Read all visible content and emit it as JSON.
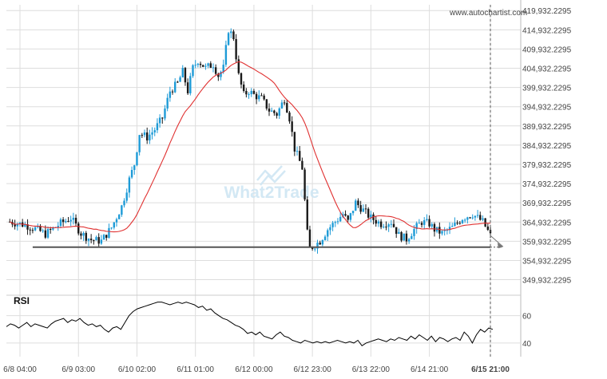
{
  "source_text": "www.autochartist.com",
  "watermark": {
    "part1": "What",
    "digit": "2",
    "part2": "Trade"
  },
  "colors": {
    "bull": "#1e9bd7",
    "bear": "#1a1a1a",
    "ma": "#e03030",
    "grid": "#dddddd",
    "support": "#555555",
    "projection": "#777777",
    "rsi": "#000000",
    "watermark": "#cfe6f3"
  },
  "chart_data": [
    {
      "type": "candlestick",
      "y_ticks": [
        "419,932.2295",
        "414,932.2295",
        "409,932.2295",
        "404,932.2295",
        "399,932.2295",
        "394,932.2295",
        "389,932.2295",
        "384,932.2295",
        "379,932.2295",
        "374,932.2295",
        "369,932.2295",
        "364,932.2295",
        "359,932.2295",
        "354,932.2295",
        "349,932.2295"
      ],
      "ylim": [
        346932.2295,
        421432.2295
      ],
      "x_ticks": [
        "6/8 04:00",
        "6/9 03:00",
        "6/10 02:00",
        "6/11 01:00",
        "6/12 00:00",
        "6/12 23:00",
        "6/13 22:00",
        "6/14 21:00",
        "6/15 21:00"
      ],
      "support_level": 358400,
      "support_range": [
        "6/8 09:00",
        "6/15 21:00"
      ],
      "projection": {
        "from": [
          "6/15 21:00",
          361400
        ],
        "to": [
          "6/16 02:00",
          358500
        ]
      },
      "price_anchors": [
        [
          "6/8 00:00",
          365000
        ],
        [
          "6/8 06:00",
          364200
        ],
        [
          "6/8 10:00",
          363200
        ],
        [
          "6/8 14:00",
          361800
        ],
        [
          "6/8 20:00",
          364600
        ],
        [
          "6/9 00:00",
          366000
        ],
        [
          "6/9 04:00",
          362000
        ],
        [
          "6/9 08:00",
          360300
        ],
        [
          "6/9 12:00",
          360000
        ],
        [
          "6/9 16:00",
          363500
        ],
        [
          "6/9 20:00",
          369000
        ],
        [
          "6/9 23:00",
          376000
        ],
        [
          "6/10 01:00",
          380000
        ],
        [
          "6/10 03:00",
          388000
        ],
        [
          "6/10 06:00",
          387000
        ],
        [
          "6/10 09:00",
          389000
        ],
        [
          "6/10 12:00",
          392000
        ],
        [
          "6/10 15:00",
          399000
        ],
        [
          "6/10 18:00",
          401000
        ],
        [
          "6/10 20:00",
          404000
        ],
        [
          "6/10 22:00",
          399000
        ],
        [
          "6/11 00:00",
          405000
        ],
        [
          "6/11 02:00",
          407000
        ],
        [
          "6/11 05:00",
          405000
        ],
        [
          "6/11 08:00",
          406000
        ],
        [
          "6/11 10:00",
          403000
        ],
        [
          "6/11 12:00",
          405000
        ],
        [
          "6/11 14:00",
          415000
        ],
        [
          "6/11 16:00",
          413000
        ],
        [
          "6/11 18:00",
          403000
        ],
        [
          "6/11 20:00",
          398000
        ],
        [
          "6/11 22:00",
          399000
        ],
        [
          "6/12 00:00",
          398000
        ],
        [
          "6/12 03:00",
          397000
        ],
        [
          "6/12 06:00",
          394000
        ],
        [
          "6/12 09:00",
          393000
        ],
        [
          "6/12 12:00",
          397000
        ],
        [
          "6/12 14:00",
          392000
        ],
        [
          "6/12 16:00",
          384000
        ],
        [
          "6/12 19:00",
          379000
        ],
        [
          "6/12 21:00",
          362000
        ],
        [
          "6/12 22:00",
          358000
        ],
        [
          "6/13 00:00",
          359000
        ],
        [
          "6/13 02:00",
          360000
        ],
        [
          "6/13 05:00",
          363000
        ],
        [
          "6/13 08:00",
          365000
        ],
        [
          "6/13 11:00",
          367000
        ],
        [
          "6/13 13:00",
          365000
        ],
        [
          "6/13 16:00",
          370000
        ],
        [
          "6/13 19:00",
          368000
        ],
        [
          "6/13 22:00",
          366000
        ],
        [
          "6/14 02:00",
          364500
        ],
        [
          "6/14 06:00",
          365000
        ],
        [
          "6/14 09:00",
          361500
        ],
        [
          "6/14 12:00",
          360500
        ],
        [
          "6/14 15:00",
          363000
        ],
        [
          "6/14 18:00",
          365000
        ],
        [
          "6/14 21:00",
          364500
        ],
        [
          "6/14 23:00",
          363000
        ],
        [
          "6/15 02:00",
          362000
        ],
        [
          "6/15 06:00",
          363500
        ],
        [
          "6/15 10:00",
          366000
        ],
        [
          "6/15 14:00",
          367000
        ],
        [
          "6/15 18:00",
          365000
        ],
        [
          "6/15 21:00",
          361400
        ]
      ]
    },
    {
      "type": "line",
      "label": "RSI",
      "y_ticks": [
        "60",
        "40"
      ],
      "ylim": [
        30,
        75
      ],
      "values": [
        52,
        54,
        53,
        51,
        53,
        55,
        52,
        54,
        53,
        52,
        51,
        54,
        56,
        57,
        58,
        55,
        57,
        56,
        58,
        55,
        53,
        54,
        52,
        53,
        50,
        48,
        51,
        52,
        50,
        55,
        60,
        63,
        65,
        66,
        67,
        68,
        69,
        70,
        70,
        69,
        68,
        69,
        70,
        69,
        70,
        69,
        68,
        66,
        67,
        64,
        65,
        62,
        60,
        58,
        57,
        55,
        53,
        52,
        50,
        47,
        48,
        46,
        48,
        45,
        44,
        43,
        46,
        48,
        45,
        44,
        42,
        41,
        40,
        42,
        41,
        40,
        41,
        40,
        41,
        40,
        41,
        42,
        41,
        40,
        41,
        40,
        42,
        38,
        40,
        41,
        42,
        43,
        42,
        41,
        43,
        42,
        44,
        43,
        42,
        45,
        43,
        46,
        44,
        42,
        45,
        41,
        44,
        43,
        41,
        43,
        44,
        42,
        48,
        45,
        40,
        46,
        50,
        48,
        51,
        50
      ]
    }
  ]
}
